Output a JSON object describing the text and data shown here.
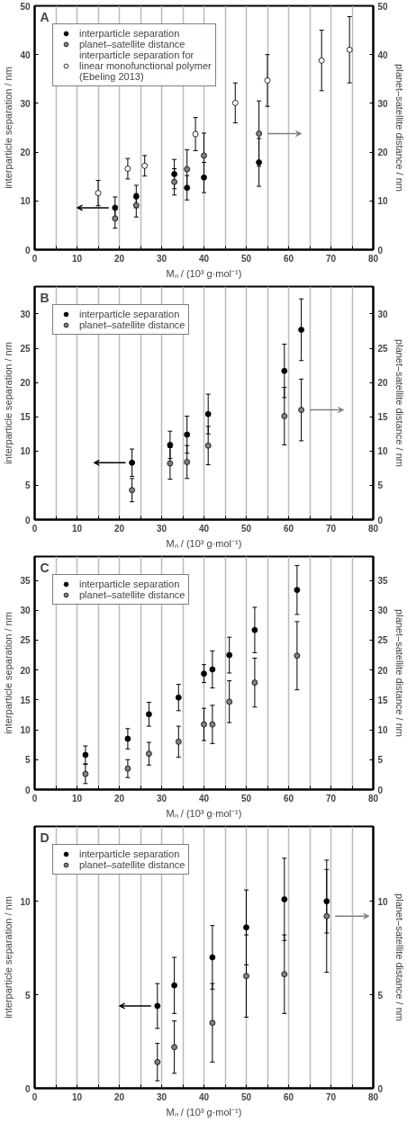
{
  "chart_data": [
    {
      "type": "scatter",
      "title": "A",
      "xlabel": "Mₙ / (10³ g·mol⁻¹)",
      "ylabel": "interparticle separation / nm",
      "y2label": "planet–satellite distance / nm",
      "xlim": [
        0,
        80
      ],
      "xticks": [
        0,
        {
          "value": 5,
          "label": null
        },
        10,
        {
          "value": 15,
          "label": null
        },
        20,
        {
          "value": 25,
          "label": null
        },
        30,
        {
          "value": 35,
          "label": null
        },
        40,
        {
          "value": 45,
          "label": null
        },
        50,
        {
          "value": 55,
          "label": null
        },
        60,
        {
          "value": 65,
          "label": null
        },
        70,
        {
          "value": 75,
          "label": null
        },
        80
      ],
      "ylim": [
        0,
        50
      ],
      "yticks": [
        0,
        10,
        20,
        30,
        40,
        50
      ],
      "y2lim": [
        0,
        50
      ],
      "y2ticks": [
        0,
        10,
        20,
        30,
        40,
        50
      ],
      "grid": "x",
      "legend": "top left",
      "marker": "circle",
      "series": [
        {
          "name": "interparticle separation",
          "color": "#000000",
          "x": [
            19,
            24,
            33,
            36,
            40,
            53
          ],
          "values": [
            8.6,
            10.9,
            15.5,
            12.7,
            14.8,
            17.9
          ],
          "errors": [
            2.2,
            2.3,
            3.0,
            2.5,
            3.1,
            4.9
          ]
        },
        {
          "name": "planet–satellite distance",
          "color": "#808080",
          "axis": "y2",
          "x": [
            19,
            24,
            33,
            36,
            40,
            53
          ],
          "values": [
            6.4,
            9.1,
            13.9,
            16.5,
            19.3,
            23.8
          ],
          "errors": [
            2.0,
            2.4,
            2.7,
            4.0,
            4.6,
            6.7
          ]
        },
        {
          "name": "interparticle separation for linear monofunctional polymer (Ebeling 2013)",
          "color": "#ffffff",
          "x": [
            15,
            22,
            26,
            38,
            47.4,
            55,
            67.8,
            74.4
          ],
          "values": [
            11.6,
            16.6,
            17.2,
            23.7,
            30.1,
            34.7,
            38.8,
            41.0
          ],
          "errors": [
            2.6,
            2.1,
            2.1,
            3.4,
            4.1,
            5.3,
            6.2,
            6.8
          ]
        }
      ]
    },
    {
      "type": "scatter",
      "title": "B",
      "xlabel": "Mₙ / (10³ g·mol⁻¹)",
      "ylabel": "interparticle separation / nm",
      "y2label": "planet–satellite distance / nm",
      "xlim": [
        0,
        80
      ],
      "xticks": [
        0,
        {
          "value": 5,
          "label": null
        },
        10,
        {
          "value": 15,
          "label": null
        },
        20,
        {
          "value": 25,
          "label": null
        },
        30,
        {
          "value": 35,
          "label": null
        },
        40,
        {
          "value": 45,
          "label": null
        },
        50,
        {
          "value": 55,
          "label": null
        },
        60,
        {
          "value": 65,
          "label": null
        },
        70,
        {
          "value": 75,
          "label": null
        },
        80
      ],
      "ylim": [
        0,
        34
      ],
      "yticks": [
        0,
        5,
        10,
        15,
        20,
        25,
        30
      ],
      "y2lim": [
        0,
        34
      ],
      "y2ticks": [
        0,
        5,
        10,
        15,
        20,
        25,
        30
      ],
      "grid": "x",
      "legend": "top left",
      "marker": "circle",
      "series": [
        {
          "name": "interparticle separation",
          "color": "#000000",
          "x": [
            23,
            32,
            36,
            41,
            59,
            63
          ],
          "values": [
            8.3,
            10.9,
            12.4,
            15.4,
            21.7,
            27.7
          ],
          "errors": [
            2.0,
            2.0,
            2.7,
            2.9,
            3.9,
            4.5
          ]
        },
        {
          "name": "planet–satellite distance",
          "color": "#808080",
          "axis": "y2",
          "x": [
            23,
            32,
            36,
            41,
            59,
            63
          ],
          "values": [
            4.3,
            8.2,
            8.4,
            10.8,
            15.1,
            16.0
          ],
          "errors": [
            1.7,
            2.3,
            2.4,
            2.8,
            4.2,
            4.5
          ]
        }
      ]
    },
    {
      "type": "scatter",
      "title": "C",
      "xlabel": "Mₙ / (10³ g·mol⁻¹)",
      "ylabel": "interparticle separation / nm",
      "y2label": "planet–satellite distance / nm",
      "xlim": [
        0,
        80
      ],
      "xticks": [
        0,
        {
          "value": 5,
          "label": null
        },
        10,
        {
          "value": 15,
          "label": null
        },
        20,
        {
          "value": 25,
          "label": null
        },
        30,
        {
          "value": 35,
          "label": null
        },
        40,
        {
          "value": 45,
          "label": null
        },
        50,
        {
          "value": 55,
          "label": null
        },
        60,
        {
          "value": 65,
          "label": null
        },
        70,
        {
          "value": 75,
          "label": null
        },
        80
      ],
      "ylim": [
        0,
        39
      ],
      "yticks": [
        0,
        5,
        10,
        15,
        20,
        25,
        30,
        35
      ],
      "y2lim": [
        0,
        39
      ],
      "y2ticks": [
        0,
        5,
        10,
        15,
        20,
        25,
        30,
        35
      ],
      "grid": "x",
      "legend": "top left",
      "marker": "circle",
      "series": [
        {
          "name": "interparticle separation",
          "color": "#000000",
          "x": [
            12,
            22,
            27,
            34,
            40,
            42,
            46,
            52,
            62
          ],
          "values": [
            5.8,
            8.5,
            12.6,
            15.4,
            19.4,
            20.1,
            22.5,
            26.7,
            33.4
          ],
          "errors": [
            1.5,
            1.7,
            2.0,
            2.2,
            1.5,
            3.1,
            3.0,
            3.8,
            4.1
          ]
        },
        {
          "name": "planet–satellite distance",
          "color": "#808080",
          "axis": "y2",
          "x": [
            12,
            22,
            27,
            34,
            40,
            42,
            46,
            52,
            62
          ],
          "values": [
            2.6,
            3.5,
            6.0,
            8.0,
            10.9,
            10.9,
            14.7,
            17.9,
            22.4
          ],
          "errors": [
            1.6,
            1.5,
            1.9,
            2.6,
            2.7,
            3.2,
            3.5,
            4.1,
            5.7
          ]
        }
      ]
    },
    {
      "type": "scatter",
      "title": "D",
      "xlabel": "Mₙ / (10³ g·mol⁻¹)",
      "ylabel": "interparticle separation / nm",
      "y2label": "planet–satellite distance / nm",
      "xlim": [
        0,
        80
      ],
      "xticks": [
        0,
        {
          "value": 5,
          "label": null
        },
        10,
        {
          "value": 15,
          "label": null
        },
        20,
        {
          "value": 25,
          "label": null
        },
        30,
        {
          "value": 35,
          "label": null
        },
        40,
        {
          "value": 45,
          "label": null
        },
        50,
        {
          "value": 55,
          "label": null
        },
        60,
        {
          "value": 65,
          "label": null
        },
        70,
        {
          "value": 75,
          "label": null
        },
        80
      ],
      "ylim": [
        0,
        14
      ],
      "yticks": [
        0,
        5,
        10
      ],
      "y2lim": [
        0,
        14
      ],
      "y2ticks": [
        0,
        5,
        10
      ],
      "grid": "x",
      "legend": "top left",
      "marker": "circle",
      "series": [
        {
          "name": "interparticle separation",
          "color": "#000000",
          "x": [
            29,
            33,
            42,
            50,
            59,
            69
          ],
          "values": [
            4.4,
            5.5,
            7.0,
            8.6,
            10.1,
            10.0
          ],
          "errors": [
            1.2,
            1.5,
            1.7,
            2.0,
            2.2,
            1.7
          ]
        },
        {
          "name": "planet–satellite distance",
          "color": "#808080",
          "axis": "y2",
          "x": [
            29,
            33,
            42,
            50,
            59,
            69
          ],
          "values": [
            1.4,
            2.2,
            3.5,
            6.0,
            6.1,
            9.2
          ],
          "errors": [
            1.0,
            1.4,
            2.1,
            2.2,
            2.1,
            3.0
          ]
        }
      ]
    }
  ]
}
